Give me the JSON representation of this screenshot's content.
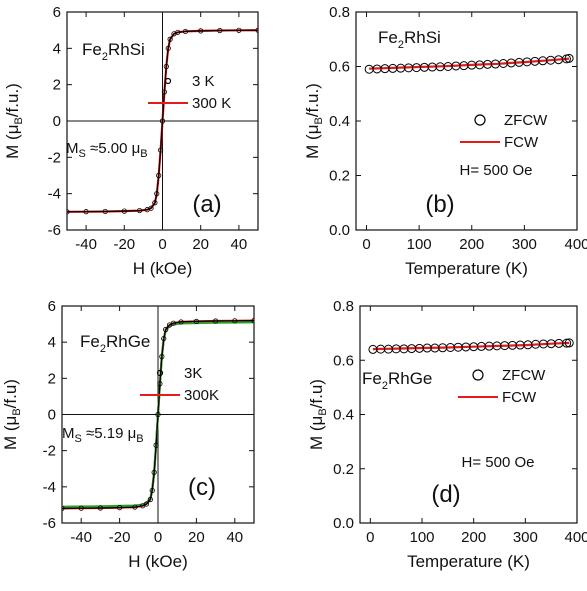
{
  "chart_data": [
    {
      "id": "a",
      "type": "line",
      "panel_label": "(a)",
      "compound": {
        "main": "Fe",
        "sub": "2",
        "rest": "RhSi"
      },
      "ms_note": {
        "main": "M",
        "sub": "S",
        "rest": " ≈5.00 μ",
        "sub2": "B"
      },
      "xlabel": "H (kOe)",
      "ylabel": "M (μB/f.u.)",
      "xlim": [
        -50,
        50
      ],
      "ylim": [
        -6,
        6
      ],
      "xticks": [
        -40,
        -20,
        0,
        20,
        40
      ],
      "yticks": [
        -6,
        -4,
        -2,
        0,
        2,
        4,
        6
      ],
      "legend_position": "right",
      "series": [
        {
          "name": "3 K",
          "marker": "circle",
          "color": "#000000",
          "x": [
            -50,
            -40,
            -30,
            -20,
            -12,
            -8,
            -6,
            -4,
            -3,
            -2,
            -1,
            0,
            1,
            2,
            3,
            4,
            6,
            8,
            12,
            20,
            30,
            40,
            50
          ],
          "y": [
            -5.0,
            -4.99,
            -4.98,
            -4.96,
            -4.93,
            -4.88,
            -4.8,
            -4.5,
            -4.0,
            -3.0,
            -1.6,
            0,
            1.6,
            3.0,
            4.0,
            4.5,
            4.8,
            4.88,
            4.93,
            4.96,
            4.98,
            4.99,
            5.0
          ]
        },
        {
          "name": "300 K",
          "marker": "line",
          "color": "#e41a1c",
          "x": [
            -50,
            -40,
            -30,
            -20,
            -12,
            -8,
            -6,
            -4,
            -3,
            -2,
            -1,
            0,
            1,
            2,
            3,
            4,
            6,
            8,
            12,
            20,
            30,
            40,
            50
          ],
          "y": [
            -5.0,
            -4.99,
            -4.98,
            -4.96,
            -4.93,
            -4.88,
            -4.8,
            -4.5,
            -4.0,
            -3.0,
            -1.6,
            0,
            1.6,
            3.0,
            4.0,
            4.5,
            4.8,
            4.88,
            4.93,
            4.96,
            4.98,
            4.99,
            5.0
          ]
        }
      ]
    },
    {
      "id": "b",
      "type": "line",
      "panel_label": "(b)",
      "compound": {
        "main": "Fe",
        "sub": "2",
        "rest": "RhSi"
      },
      "field_note": "H= 500 Oe",
      "xlabel": "Temperature (K)",
      "ylabel": "M (μB/f.u.)",
      "xlim": [
        -20,
        400
      ],
      "ylim": [
        0.0,
        0.8
      ],
      "xticks": [
        0,
        100,
        200,
        300,
        400
      ],
      "yticks": [
        0.0,
        0.2,
        0.4,
        0.6,
        0.8
      ],
      "legend_position": "right",
      "series": [
        {
          "name": "ZFCW",
          "marker": "circle",
          "color": "#000000",
          "x": [
            5,
            20,
            35,
            50,
            65,
            80,
            95,
            110,
            125,
            140,
            155,
            170,
            185,
            200,
            215,
            230,
            245,
            260,
            275,
            290,
            305,
            320,
            335,
            350,
            365,
            380,
            385
          ],
          "y": [
            0.59,
            0.591,
            0.592,
            0.593,
            0.594,
            0.595,
            0.596,
            0.597,
            0.598,
            0.599,
            0.6,
            0.602,
            0.603,
            0.605,
            0.606,
            0.608,
            0.609,
            0.611,
            0.613,
            0.615,
            0.617,
            0.619,
            0.621,
            0.623,
            0.625,
            0.628,
            0.63
          ]
        },
        {
          "name": "FCW",
          "marker": "line",
          "color": "#e41a1c",
          "x": [
            5,
            50,
            100,
            150,
            200,
            250,
            300,
            350,
            385
          ],
          "y": [
            0.592,
            0.595,
            0.598,
            0.601,
            0.606,
            0.61,
            0.616,
            0.623,
            0.629
          ]
        }
      ]
    },
    {
      "id": "c",
      "type": "line",
      "panel_label": "(c)",
      "compound": {
        "main": "Fe",
        "sub": "2",
        "rest": "RhGe"
      },
      "ms_note": {
        "main": "M",
        "sub": "S",
        "rest": " ≈5.19 μ",
        "sub2": "B"
      },
      "xlabel": "H (kOe)",
      "ylabel": "M (μB/f.u)",
      "xlim": [
        -50,
        50
      ],
      "ylim": [
        -6,
        6
      ],
      "xticks": [
        -40,
        -20,
        0,
        20,
        40
      ],
      "yticks": [
        -6,
        -4,
        -2,
        0,
        2,
        4,
        6
      ],
      "legend_position": "right",
      "series": [
        {
          "name": "3K",
          "marker": "circle",
          "color": "#000000",
          "x": [
            -50,
            -40,
            -30,
            -20,
            -12,
            -8,
            -6,
            -4,
            -3,
            -2,
            -1,
            0,
            1,
            2,
            3,
            4,
            6,
            8,
            12,
            20,
            30,
            40,
            50
          ],
          "y": [
            -5.19,
            -5.18,
            -5.17,
            -5.15,
            -5.12,
            -5.05,
            -4.95,
            -4.7,
            -4.2,
            -3.2,
            -1.7,
            0,
            1.7,
            3.2,
            4.2,
            4.7,
            4.95,
            5.05,
            5.12,
            5.15,
            5.17,
            5.18,
            5.19
          ]
        },
        {
          "name": "300K",
          "marker": "line",
          "color": "#e41a1c",
          "x": [
            -50,
            -40,
            -30,
            -20,
            -12,
            -8,
            -6,
            -4,
            -3,
            -2,
            -1,
            0,
            1,
            2,
            3,
            4,
            6,
            8,
            12,
            20,
            30,
            40,
            50
          ],
          "y": [
            -5.19,
            -5.18,
            -5.17,
            -5.15,
            -5.12,
            -5.05,
            -4.95,
            -4.7,
            -4.2,
            -3.2,
            -1.7,
            0,
            1.7,
            3.2,
            4.2,
            4.7,
            4.95,
            5.05,
            5.12,
            5.15,
            5.17,
            5.18,
            5.19
          ]
        },
        {
          "marker": "line",
          "color": "#2ca02c",
          "x": [
            -50,
            -30,
            -12,
            -8,
            -6,
            -4,
            -3,
            -2,
            -1,
            0,
            1,
            2,
            3,
            4,
            6,
            8,
            12,
            30,
            50
          ],
          "y": [
            -5.1,
            -5.08,
            -5.04,
            -4.98,
            -4.9,
            -4.65,
            -4.15,
            -3.15,
            -1.65,
            0,
            1.65,
            3.15,
            4.15,
            4.65,
            4.9,
            4.98,
            5.04,
            5.08,
            5.1
          ]
        }
      ]
    },
    {
      "id": "d",
      "type": "line",
      "panel_label": "(d)",
      "compound": {
        "main": "Fe",
        "sub": "2",
        "rest": "RhGe"
      },
      "field_note": "H= 500 Oe",
      "xlabel": "Temperature (K)",
      "ylabel": "M (μB/f.u)",
      "xlim": [
        -20,
        400
      ],
      "ylim": [
        0.0,
        0.8
      ],
      "xticks": [
        0,
        100,
        200,
        300,
        400
      ],
      "yticks": [
        0.0,
        0.2,
        0.4,
        0.6,
        0.8
      ],
      "legend_position": "right",
      "series": [
        {
          "name": "ZFCW",
          "marker": "circle",
          "color": "#000000",
          "x": [
            5,
            20,
            35,
            50,
            65,
            80,
            95,
            110,
            125,
            140,
            155,
            170,
            185,
            200,
            215,
            230,
            245,
            260,
            275,
            290,
            305,
            320,
            335,
            350,
            365,
            380,
            385
          ],
          "y": [
            0.64,
            0.641,
            0.641,
            0.642,
            0.642,
            0.643,
            0.644,
            0.645,
            0.645,
            0.646,
            0.647,
            0.648,
            0.649,
            0.65,
            0.651,
            0.652,
            0.653,
            0.654,
            0.655,
            0.656,
            0.657,
            0.659,
            0.66,
            0.661,
            0.662,
            0.663,
            0.664
          ]
        },
        {
          "name": "FCW",
          "marker": "line",
          "color": "#e41a1c",
          "x": [
            5,
            50,
            100,
            150,
            200,
            250,
            300,
            350,
            385
          ],
          "y": [
            0.641,
            0.643,
            0.645,
            0.647,
            0.65,
            0.653,
            0.656,
            0.661,
            0.664
          ]
        }
      ]
    }
  ]
}
